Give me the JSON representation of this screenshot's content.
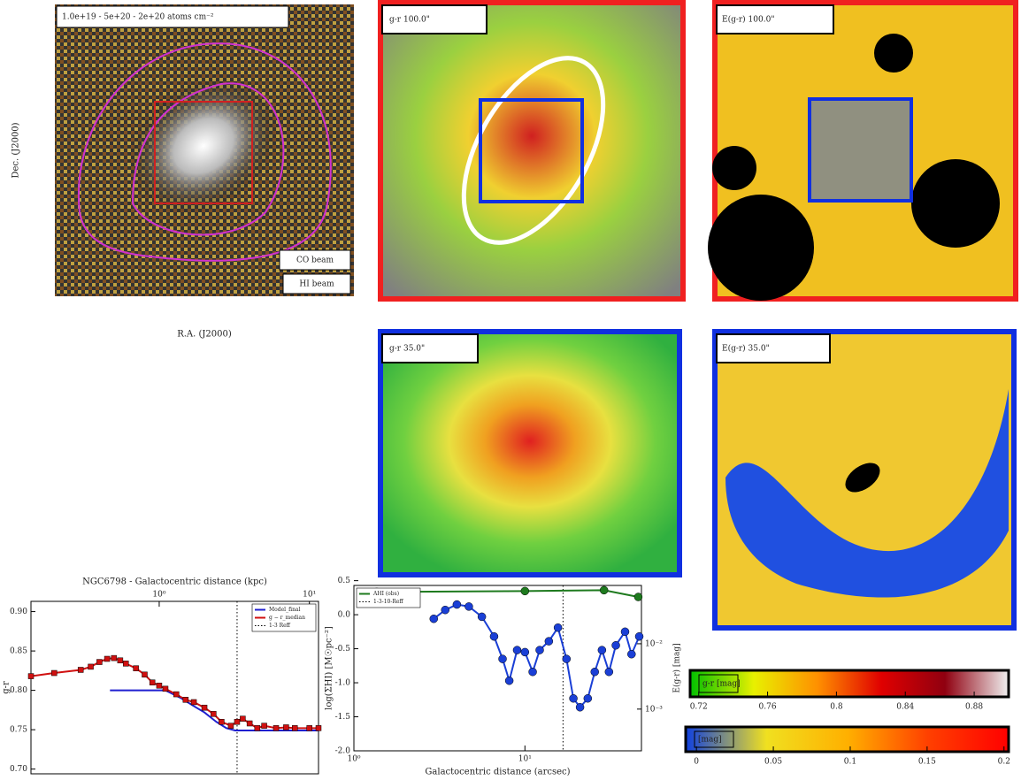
{
  "panels": [
    {
      "label": "1.0e+19 - 5e+20 - 2e+20 atoms cm⁻²",
      "beams": [
        "CO beam",
        "HI beam"
      ],
      "xlabel": "R.A. (J2000)",
      "ylabel": "Dec. (J2000)"
    },
    {
      "label": "g-r    100.0\""
    },
    {
      "label": "E(g-r)    100.0\""
    },
    {
      "label": "g-r    35.0\""
    },
    {
      "label": "E(g-r)    35.0\""
    }
  ],
  "chart_data": [
    {
      "type": "line",
      "title": "NGC6798 - Galactocentric distance (kpc)",
      "ylabel": "g-r",
      "xscale": "log",
      "xtick_side": "top",
      "xlim": [
        0.14,
        11.5
      ],
      "xticks": [
        {
          "value": 1,
          "label": "10⁰"
        },
        {
          "value": 10,
          "label": "10¹"
        }
      ],
      "ylim": [
        0.694,
        0.913
      ],
      "yticks": [
        {
          "value": 0.7,
          "label": "0.70"
        },
        0.75,
        {
          "value": 0.8,
          "label": "0.80"
        },
        0.85,
        {
          "value": 0.9,
          "label": "0.90"
        }
      ],
      "legend": "upper right",
      "series": [
        {
          "name": "Model_final",
          "color": "#1f1fd0",
          "marker": "none",
          "x": [
            0.47,
            1.1,
            1.4,
            1.7,
            2.0,
            2.4,
            2.8,
            3.2,
            11.5
          ],
          "values": [
            0.8,
            0.8,
            0.79,
            0.78,
            0.772,
            0.76,
            0.752,
            0.749,
            0.749
          ]
        },
        {
          "name": "g − r_median",
          "color": "#d01010",
          "marker": "s",
          "x": [
            0.14,
            0.2,
            0.3,
            0.35,
            0.4,
            0.45,
            0.5,
            0.55,
            0.6,
            0.7,
            0.8,
            0.9,
            1.0,
            1.1,
            1.3,
            1.5,
            1.7,
            2.0,
            2.3,
            2.6,
            3.0,
            3.3,
            3.6,
            4.0,
            4.5,
            5,
            6,
            7,
            8,
            10,
            11.5
          ],
          "values": [
            0.818,
            0.822,
            0.826,
            0.83,
            0.836,
            0.84,
            0.841,
            0.838,
            0.834,
            0.828,
            0.82,
            0.81,
            0.806,
            0.802,
            0.795,
            0.788,
            0.785,
            0.778,
            0.77,
            0.76,
            0.755,
            0.76,
            0.764,
            0.758,
            0.752,
            0.755,
            0.752,
            0.753,
            0.752,
            0.752,
            0.752
          ]
        }
      ],
      "vlines": [
        {
          "name": "1-3 Reff",
          "x": 3.3
        }
      ]
    },
    {
      "type": "line",
      "xlabel": "Galactocentric distance (arcsec)",
      "ylabel": "log(ΣHI) [M☉pc⁻²]",
      "y2label": "E(g-r) [mag]",
      "xscale": "log",
      "y2scale": "log",
      "xtick_side": "bottom",
      "xlim": [
        1,
        48
      ],
      "xticks": [
        {
          "value": 1,
          "label": "10⁰"
        },
        {
          "value": 10,
          "label": "10¹"
        }
      ],
      "ylim": [
        -2.0,
        0.43
      ],
      "yticks": [
        {
          "value": -2,
          "label": "-2.0"
        },
        -1.5,
        {
          "value": -1,
          "label": "-1.0"
        },
        -0.5,
        {
          "value": 0,
          "label": "0.0"
        },
        0.5
      ],
      "y2lim": [
        0.00023,
        0.078
      ],
      "y2ticks": [
        {
          "value": 0.001,
          "label": "10⁻³"
        },
        {
          "value": 0.01,
          "label": "10⁻²"
        }
      ],
      "legend": "upper left",
      "series": [
        {
          "name": "AHI (obs)",
          "color": "#1e7a1e",
          "marker": "o",
          "axis": "y2",
          "x": [
            1.36,
            10,
            29,
            46
          ],
          "values": [
            0.062,
            0.064,
            0.066,
            0.052
          ]
        },
        {
          "color": "#1a3fd6",
          "marker": "o",
          "x": [
            2.93,
            3.42,
            4.0,
            4.7,
            5.6,
            6.6,
            7.4,
            8.1,
            9.0,
            10.0,
            11.1,
            12.2,
            13.8,
            15.6,
            17.5,
            19.2,
            21,
            23.3,
            25.6,
            28.2,
            31,
            34,
            38.5,
            42,
            46.6
          ],
          "values": [
            -0.06,
            0.07,
            0.15,
            0.12,
            -0.03,
            -0.32,
            -0.65,
            -0.97,
            -0.52,
            -0.55,
            -0.84,
            -0.52,
            -0.39,
            -0.19,
            -0.65,
            -1.23,
            -1.36,
            -1.23,
            -0.84,
            -0.52,
            -0.84,
            -0.45,
            -0.25,
            -0.58,
            -0.32
          ]
        }
      ],
      "vlines": [
        {
          "name": "1-3-10-Reff",
          "x": 16.7
        }
      ]
    },
    {
      "type": "colorbar",
      "title": "g-r [mag]",
      "xlim": [
        0.715,
        0.9
      ],
      "xticks": [
        0.72,
        0.76,
        0.8,
        0.84,
        0.88
      ],
      "colors": [
        "#00c000",
        "#e8f000",
        "#ff9000",
        "#e00000",
        "#900010",
        "#f0f0f0"
      ]
    },
    {
      "type": "colorbar",
      "title": "[mag]",
      "xlim": [
        -0.007,
        0.203
      ],
      "xticks": [
        0,
        0.05,
        0.1,
        0.15,
        0.2
      ],
      "colors": [
        "#1040e0",
        "#f0e020",
        "#ffb000",
        "#ff4000",
        "#ff0000"
      ]
    }
  ]
}
